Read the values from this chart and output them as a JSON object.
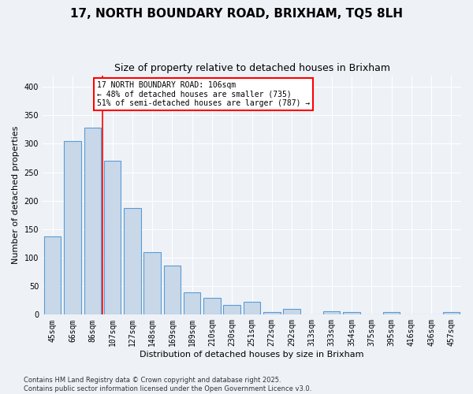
{
  "title": "17, NORTH BOUNDARY ROAD, BRIXHAM, TQ5 8LH",
  "subtitle": "Size of property relative to detached houses in Brixham",
  "xlabel": "Distribution of detached houses by size in Brixham",
  "ylabel": "Number of detached properties",
  "bar_color": "#c8d8e8",
  "bar_edge_color": "#5b9bd5",
  "categories": [
    "45sqm",
    "66sqm",
    "86sqm",
    "107sqm",
    "127sqm",
    "148sqm",
    "169sqm",
    "189sqm",
    "210sqm",
    "230sqm",
    "251sqm",
    "272sqm",
    "292sqm",
    "313sqm",
    "333sqm",
    "354sqm",
    "375sqm",
    "395sqm",
    "416sqm",
    "436sqm",
    "457sqm"
  ],
  "values": [
    137,
    305,
    328,
    270,
    187,
    109,
    86,
    39,
    29,
    17,
    23,
    4,
    10,
    0,
    6,
    5,
    0,
    4,
    0,
    0,
    5
  ],
  "marker_label_line1": "17 NORTH BOUNDARY ROAD: 106sqm",
  "marker_label_line2": "← 48% of detached houses are smaller (735)",
  "marker_label_line3": "51% of semi-detached houses are larger (787) →",
  "annotation_box_color": "white",
  "annotation_box_edge": "red",
  "vline_color": "red",
  "vline_x": 2.5,
  "ylim": [
    0,
    420
  ],
  "yticks": [
    0,
    50,
    100,
    150,
    200,
    250,
    300,
    350,
    400
  ],
  "footer": "Contains HM Land Registry data © Crown copyright and database right 2025.\nContains public sector information licensed under the Open Government Licence v3.0.",
  "background_color": "#eef2f7",
  "grid_color": "white",
  "title_fontsize": 11,
  "subtitle_fontsize": 9,
  "axis_fontsize": 8,
  "tick_fontsize": 7,
  "footer_fontsize": 6
}
